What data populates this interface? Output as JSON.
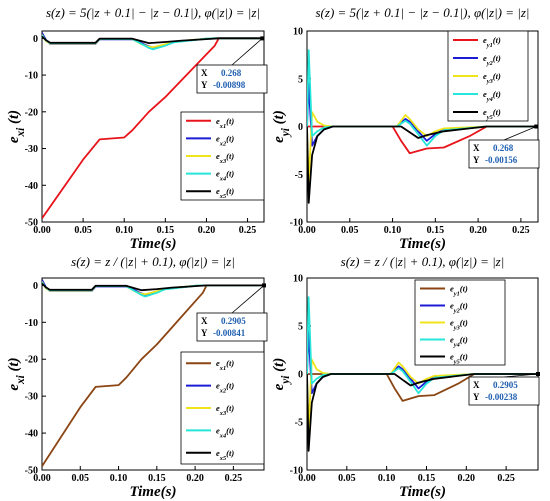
{
  "charts": [
    {
      "type": "line",
      "title": "s(z) = 5(|z + 0.1| − |z − 0.1|), φ(|z|) = |z|",
      "xlabel": "Time(s)",
      "ylabel": "e_xi (t)",
      "xlim": [
        0,
        0.27
      ],
      "ylim": [
        -50,
        2
      ],
      "xticks": [
        "0.00",
        "0.05",
        "0.10",
        "0.15",
        "0.20",
        "0.25"
      ],
      "xtick_values": [
        0,
        0.05,
        0.1,
        0.15,
        0.2,
        0.25
      ],
      "yticks": [
        "0",
        "-10",
        "-20",
        "-30",
        "-40",
        "-50"
      ],
      "ytick_values": [
        0,
        -10,
        -20,
        -30,
        -40,
        -50
      ],
      "legend_position": "center-right",
      "datatip": {
        "x_label": "X",
        "y_label": "Y",
        "x_value": "0.268",
        "y_value": "-0.00898",
        "x": 0.268,
        "y": -0.00898
      },
      "series": [
        {
          "name": "e_x1(t)",
          "color": "#e8131b",
          "x": [
            0,
            0.05,
            0.07,
            0.1,
            0.11,
            0.13,
            0.15,
            0.18,
            0.21,
            0.215,
            0.27
          ],
          "y": [
            -49,
            -33,
            -27.5,
            -27,
            -25,
            -20,
            -16,
            -9,
            -2,
            0,
            0
          ]
        },
        {
          "name": "e_x2(t)",
          "color": "#1c1cd6",
          "x": [
            0,
            0.005,
            0.01,
            0.065,
            0.07,
            0.11,
            0.12,
            0.13,
            0.135,
            0.15,
            0.16,
            0.2,
            0.21,
            0.27
          ],
          "y": [
            1.5,
            -0.5,
            -1.5,
            -1.5,
            -0.3,
            -0.3,
            -1.2,
            -2.2,
            -2.5,
            -1.8,
            -1,
            -0.1,
            0,
            0
          ]
        },
        {
          "name": "e_x3(t)",
          "color": "#f0e41a",
          "x": [
            0,
            0.005,
            0.01,
            0.065,
            0.07,
            0.11,
            0.12,
            0.13,
            0.135,
            0.15,
            0.16,
            0.2,
            0.21,
            0.27
          ],
          "y": [
            1.0,
            -0.8,
            -1.4,
            -1.4,
            -0.2,
            -0.2,
            -1.5,
            -2.3,
            -2.4,
            -1.6,
            -0.9,
            -0.1,
            0,
            0
          ]
        },
        {
          "name": "e_x4(t)",
          "color": "#25e6d8",
          "x": [
            0,
            0.005,
            0.01,
            0.065,
            0.07,
            0.11,
            0.12,
            0.13,
            0.135,
            0.15,
            0.16,
            0.2,
            0.21,
            0.27
          ],
          "y": [
            0.8,
            -0.6,
            -1.3,
            -1.3,
            -0.2,
            -0.2,
            -1.4,
            -2.6,
            -3.0,
            -2.0,
            -1.1,
            -0.1,
            0,
            0
          ]
        },
        {
          "name": "e_x5(t)",
          "color": "#000000",
          "x": [
            0,
            0.005,
            0.01,
            0.065,
            0.07,
            0.11,
            0.13,
            0.15,
            0.17,
            0.2,
            0.215,
            0.27
          ],
          "y": [
            0.5,
            -0.5,
            -1.2,
            -1.2,
            -0.1,
            -0.1,
            -1.3,
            -1.0,
            -0.6,
            -0.2,
            0,
            0
          ]
        }
      ]
    },
    {
      "type": "line",
      "title": "s(z) = 5(|z + 0.1| − |z − 0.1|), φ(|z|) = |z|",
      "xlabel": "Time(s)",
      "ylabel": "e_yi (t)",
      "xlim": [
        0,
        0.27
      ],
      "ylim": [
        -10,
        10
      ],
      "xticks": [
        "0.00",
        "0.05",
        "0.10",
        "0.15",
        "0.20",
        "0.25"
      ],
      "xtick_values": [
        0,
        0.05,
        0.1,
        0.15,
        0.2,
        0.25
      ],
      "yticks": [
        "10",
        "5",
        "0",
        "-5",
        "-10"
      ],
      "ytick_values": [
        10,
        5,
        0,
        -5,
        -10
      ],
      "legend_position": "top-right",
      "datatip": {
        "x_label": "X",
        "y_label": "Y",
        "x_value": "0.268",
        "y_value": "-0.00156",
        "x": 0.268,
        "y": -0.00156
      },
      "series": [
        {
          "name": "e_y1(t)",
          "color": "#e8131b",
          "x": [
            0,
            0.02,
            0.03,
            0.1,
            0.11,
            0.12,
            0.14,
            0.16,
            0.19,
            0.21,
            0.27
          ],
          "y": [
            0,
            0,
            0,
            0,
            -1.5,
            -2.8,
            -2.3,
            -2.2,
            -1,
            0,
            0
          ]
        },
        {
          "name": "e_y2(t)",
          "color": "#1c1cd6",
          "x": [
            0,
            0.002,
            0.006,
            0.012,
            0.02,
            0.03,
            0.105,
            0.115,
            0.12,
            0.13,
            0.14,
            0.15,
            0.16,
            0.21,
            0.27
          ],
          "y": [
            0,
            4.5,
            -2,
            -1,
            -0.3,
            0,
            0,
            0.8,
            0.5,
            -0.5,
            -1.5,
            -0.8,
            -0.3,
            0,
            0
          ]
        },
        {
          "name": "e_y3(t)",
          "color": "#f0e41a",
          "x": [
            0,
            0.002,
            0.006,
            0.012,
            0.02,
            0.03,
            0.105,
            0.115,
            0.12,
            0.13,
            0.14,
            0.15,
            0.16,
            0.21,
            0.27
          ],
          "y": [
            0,
            -6,
            1.5,
            0.5,
            0.1,
            0,
            0,
            1.2,
            0.8,
            -0.3,
            -1.0,
            -0.5,
            -0.2,
            0,
            0
          ]
        },
        {
          "name": "e_y4(t)",
          "color": "#25e6d8",
          "x": [
            0,
            0.002,
            0.006,
            0.012,
            0.02,
            0.03,
            0.105,
            0.115,
            0.12,
            0.13,
            0.14,
            0.15,
            0.16,
            0.21,
            0.27
          ],
          "y": [
            0,
            8.0,
            -1,
            -0.5,
            -0.1,
            0,
            0,
            0.6,
            0.3,
            -0.8,
            -2.0,
            -1.0,
            -0.4,
            0,
            0
          ]
        },
        {
          "name": "e_y5(t)",
          "color": "#000000",
          "x": [
            0,
            0.002,
            0.006,
            0.012,
            0.02,
            0.03,
            0.11,
            0.12,
            0.13,
            0.14,
            0.16,
            0.19,
            0.21,
            0.27
          ],
          "y": [
            0,
            -8,
            -3,
            -1,
            -0.3,
            0,
            0,
            -0.6,
            -1.2,
            -0.9,
            -0.5,
            -0.2,
            0,
            0
          ]
        }
      ]
    },
    {
      "type": "line",
      "title": "s(z) = z / (|z| + 0.1), φ(|z|) = |z|",
      "xlabel": "Time(s)",
      "ylabel": "e_xi (t)",
      "xlim": [
        0,
        0.29
      ],
      "ylim": [
        -50,
        2
      ],
      "xticks": [
        "0.00",
        "0.05",
        "0.10",
        "0.15",
        "0.20",
        "0.25"
      ],
      "xtick_values": [
        0,
        0.05,
        0.1,
        0.15,
        0.2,
        0.25
      ],
      "yticks": [
        "0",
        "-10",
        "-20",
        "-30",
        "-40",
        "-50"
      ],
      "ytick_values": [
        0,
        -10,
        -20,
        -30,
        -40,
        -50
      ],
      "legend_position": "bottom-right",
      "datatip": {
        "x_label": "X",
        "y_label": "Y",
        "x_value": "0.2905",
        "y_value": "-0.00841",
        "x": 0.2905,
        "y": -0.00841
      },
      "series": [
        {
          "name": "e_x1(t)",
          "color": "#8b4513",
          "x": [
            0,
            0.05,
            0.07,
            0.1,
            0.11,
            0.13,
            0.15,
            0.18,
            0.21,
            0.215,
            0.29
          ],
          "y": [
            -49,
            -33,
            -27.5,
            -27,
            -25,
            -20,
            -16,
            -9,
            -2,
            0,
            0
          ]
        },
        {
          "name": "e_x2(t)",
          "color": "#1c1cd6",
          "x": [
            0,
            0.005,
            0.01,
            0.065,
            0.07,
            0.11,
            0.12,
            0.13,
            0.135,
            0.15,
            0.16,
            0.2,
            0.21,
            0.29
          ],
          "y": [
            1.5,
            -0.5,
            -1.5,
            -1.5,
            -0.3,
            -0.3,
            -1.2,
            -2.2,
            -2.5,
            -1.8,
            -1,
            -0.1,
            0,
            0
          ]
        },
        {
          "name": "e_x3(t)",
          "color": "#f0e41a",
          "x": [
            0,
            0.005,
            0.01,
            0.065,
            0.07,
            0.11,
            0.12,
            0.13,
            0.135,
            0.15,
            0.16,
            0.2,
            0.21,
            0.29
          ],
          "y": [
            1.0,
            -0.8,
            -1.4,
            -1.4,
            -0.2,
            -0.2,
            -1.5,
            -2.3,
            -2.4,
            -1.6,
            -0.9,
            -0.1,
            0,
            0
          ]
        },
        {
          "name": "e_x4(t)",
          "color": "#25e6d8",
          "x": [
            0,
            0.005,
            0.01,
            0.065,
            0.07,
            0.11,
            0.12,
            0.13,
            0.135,
            0.15,
            0.16,
            0.2,
            0.21,
            0.29
          ],
          "y": [
            0.8,
            -0.6,
            -1.3,
            -1.3,
            -0.2,
            -0.2,
            -1.4,
            -2.6,
            -3.0,
            -2.0,
            -1.1,
            -0.1,
            0,
            0
          ]
        },
        {
          "name": "e_x5(t)",
          "color": "#000000",
          "x": [
            0,
            0.005,
            0.01,
            0.065,
            0.07,
            0.11,
            0.13,
            0.15,
            0.17,
            0.2,
            0.215,
            0.29
          ],
          "y": [
            0.5,
            -0.5,
            -1.2,
            -1.2,
            -0.1,
            -0.1,
            -1.3,
            -1.0,
            -0.6,
            -0.2,
            0,
            0
          ]
        }
      ]
    },
    {
      "type": "line",
      "title": "s(z) = z / (|z| + 0.1), φ(|z|) = |z|",
      "xlabel": "Time(s)",
      "ylabel": "e_yi (t)",
      "xlim": [
        0,
        0.29
      ],
      "ylim": [
        -10,
        10
      ],
      "xticks": [
        "0.00",
        "0.05",
        "0.10",
        "0.15",
        "0.20",
        "0.25"
      ],
      "xtick_values": [
        0,
        0.05,
        0.1,
        0.15,
        0.2,
        0.25
      ],
      "yticks": [
        "10",
        "5",
        "0",
        "-5",
        "-10"
      ],
      "ytick_values": [
        10,
        5,
        0,
        -5,
        -10
      ],
      "legend_position": "top-right",
      "datatip": {
        "x_label": "X",
        "y_label": "Y",
        "x_value": "0.2905",
        "y_value": "-0.00238",
        "x": 0.2905,
        "y": -0.00238
      },
      "series": [
        {
          "name": "e_y1(t)",
          "color": "#8b4513",
          "x": [
            0,
            0.02,
            0.03,
            0.1,
            0.11,
            0.12,
            0.14,
            0.16,
            0.19,
            0.21,
            0.29
          ],
          "y": [
            0,
            0,
            0,
            0,
            -1.5,
            -2.8,
            -2.3,
            -2.2,
            -1,
            0,
            0
          ]
        },
        {
          "name": "e_y2(t)",
          "color": "#1c1cd6",
          "x": [
            0,
            0.002,
            0.006,
            0.012,
            0.02,
            0.03,
            0.105,
            0.115,
            0.12,
            0.13,
            0.14,
            0.15,
            0.16,
            0.21,
            0.29
          ],
          "y": [
            0,
            4.5,
            -2,
            -1,
            -0.3,
            0,
            0,
            0.8,
            0.5,
            -0.5,
            -1.5,
            -0.8,
            -0.3,
            0,
            0
          ]
        },
        {
          "name": "e_y3(t)",
          "color": "#f0e41a",
          "x": [
            0,
            0.002,
            0.006,
            0.012,
            0.02,
            0.03,
            0.105,
            0.115,
            0.12,
            0.13,
            0.14,
            0.15,
            0.16,
            0.21,
            0.29
          ],
          "y": [
            0,
            -6,
            1.5,
            0.5,
            0.1,
            0,
            0,
            1.2,
            0.8,
            -0.3,
            -1.0,
            -0.5,
            -0.2,
            0,
            0
          ]
        },
        {
          "name": "e_y4(t)",
          "color": "#25e6d8",
          "x": [
            0,
            0.002,
            0.006,
            0.012,
            0.02,
            0.03,
            0.105,
            0.115,
            0.12,
            0.13,
            0.14,
            0.15,
            0.16,
            0.21,
            0.29
          ],
          "y": [
            0,
            8.0,
            -1,
            -0.5,
            -0.1,
            0,
            0,
            0.6,
            0.3,
            -0.8,
            -2.0,
            -1.0,
            -0.4,
            0,
            0
          ]
        },
        {
          "name": "e_y5(t)",
          "color": "#000000",
          "x": [
            0,
            0.002,
            0.006,
            0.012,
            0.02,
            0.03,
            0.11,
            0.12,
            0.13,
            0.14,
            0.16,
            0.19,
            0.21,
            0.29
          ],
          "y": [
            0,
            -8,
            -3,
            -1,
            -0.3,
            0,
            0,
            -0.6,
            -1.2,
            -0.9,
            -0.5,
            -0.2,
            0,
            0
          ]
        }
      ]
    }
  ]
}
